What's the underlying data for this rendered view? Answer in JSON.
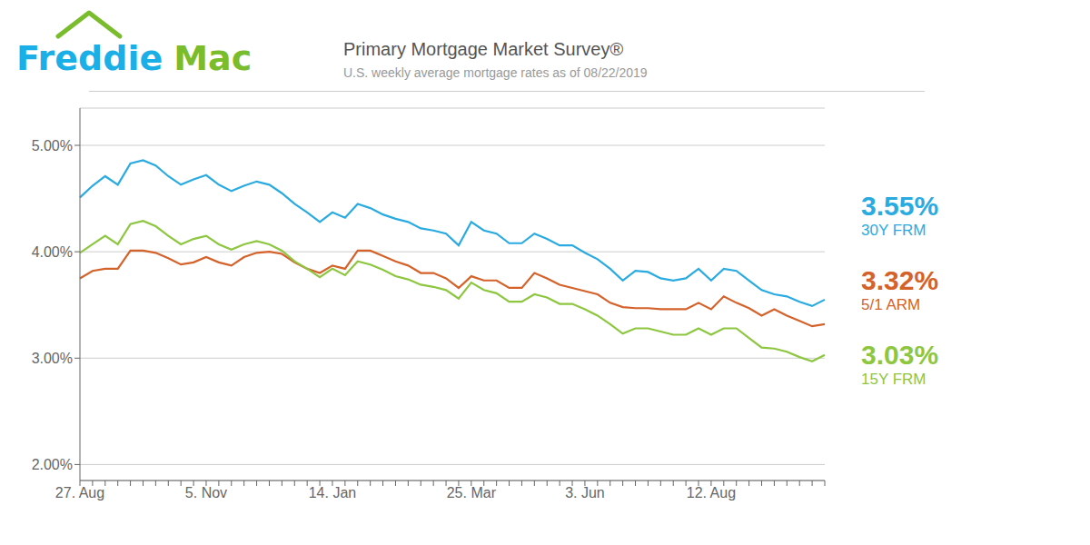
{
  "chart_data": {
    "type": "line",
    "title": "Primary Mortgage Market Survey®",
    "subtitle": "U.S. weekly average mortgage rates as of 08/22/2019",
    "categories": [
      "27. Aug",
      null,
      null,
      null,
      null,
      null,
      null,
      null,
      null,
      null,
      "5. Nov",
      null,
      null,
      null,
      null,
      null,
      null,
      null,
      null,
      null,
      "14. Jan",
      null,
      null,
      null,
      null,
      null,
      null,
      null,
      null,
      null,
      null,
      "25. Mar",
      null,
      null,
      null,
      null,
      null,
      null,
      null,
      null,
      "3. Jun",
      null,
      null,
      null,
      null,
      null,
      null,
      null,
      null,
      null,
      "12. Aug",
      null,
      null,
      null,
      null,
      null,
      null,
      null,
      null,
      null
    ],
    "series": [
      {
        "name": "30Y FRM",
        "color": "#29ABE2",
        "values": [
          4.51,
          4.62,
          4.71,
          4.63,
          4.83,
          4.86,
          4.81,
          4.71,
          4.63,
          4.68,
          4.72,
          4.63,
          4.57,
          4.62,
          4.66,
          4.63,
          4.55,
          4.45,
          4.37,
          4.28,
          4.37,
          4.32,
          4.45,
          4.41,
          4.35,
          4.31,
          4.28,
          4.22,
          4.2,
          4.17,
          4.06,
          4.28,
          4.2,
          4.17,
          4.08,
          4.08,
          4.17,
          4.12,
          4.06,
          4.06,
          3.99,
          3.93,
          3.84,
          3.73,
          3.82,
          3.81,
          3.75,
          3.73,
          3.75,
          3.84,
          3.73,
          3.84,
          3.82,
          3.73,
          3.64,
          3.6,
          3.58,
          3.53,
          3.49,
          3.55
        ]
      },
      {
        "name": "5/1 ARM",
        "color": "#D4622A",
        "values": [
          3.75,
          3.82,
          3.84,
          3.84,
          4.01,
          4.01,
          3.99,
          3.94,
          3.88,
          3.9,
          3.95,
          3.9,
          3.87,
          3.95,
          3.99,
          4.0,
          3.98,
          3.9,
          3.84,
          3.8,
          3.87,
          3.84,
          4.01,
          4.01,
          3.96,
          3.91,
          3.87,
          3.8,
          3.8,
          3.75,
          3.66,
          3.77,
          3.73,
          3.73,
          3.66,
          3.66,
          3.8,
          3.75,
          3.69,
          3.66,
          3.63,
          3.6,
          3.52,
          3.48,
          3.47,
          3.47,
          3.46,
          3.46,
          3.46,
          3.52,
          3.46,
          3.58,
          3.52,
          3.47,
          3.4,
          3.46,
          3.4,
          3.35,
          3.3,
          3.32
        ]
      },
      {
        "name": "15Y FRM",
        "color": "#8DC63F",
        "values": [
          3.99,
          4.07,
          4.15,
          4.07,
          4.26,
          4.29,
          4.24,
          4.15,
          4.07,
          4.12,
          4.15,
          4.07,
          4.02,
          4.07,
          4.1,
          4.07,
          4.01,
          3.91,
          3.84,
          3.76,
          3.84,
          3.78,
          3.91,
          3.88,
          3.83,
          3.77,
          3.74,
          3.69,
          3.67,
          3.64,
          3.56,
          3.71,
          3.64,
          3.61,
          3.53,
          3.53,
          3.6,
          3.57,
          3.51,
          3.51,
          3.46,
          3.4,
          3.32,
          3.23,
          3.28,
          3.28,
          3.25,
          3.22,
          3.22,
          3.28,
          3.22,
          3.28,
          3.28,
          3.19,
          3.1,
          3.09,
          3.06,
          3.01,
          2.97,
          3.03
        ]
      }
    ],
    "ylim": [
      1.85,
      5.35
    ],
    "yticks": [
      {
        "value": 2.0,
        "label": "2.00%"
      },
      {
        "value": 3.0,
        "label": "3.00%"
      },
      {
        "value": 4.0,
        "label": "4.00%"
      },
      {
        "value": 5.0,
        "label": "5.00%"
      }
    ],
    "grid": true,
    "annotations": [
      {
        "text": "3.55%",
        "color": "#29ABE2"
      },
      {
        "text": "3.32%",
        "color": "#D4622A"
      },
      {
        "text": "3.03%",
        "color": "#8DC63F"
      },
      {
        "text": "Freddie",
        "color": "#1AAFE6"
      },
      {
        "text": "Mac",
        "color": "#79BC2C"
      }
    ]
  }
}
